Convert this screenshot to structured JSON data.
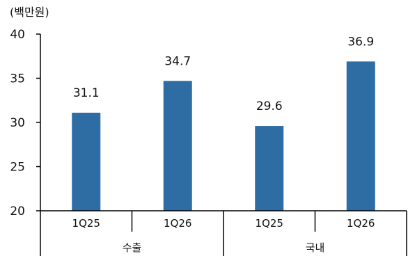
{
  "chart_data": {
    "type": "bar",
    "unit_label": "(백만원)",
    "groups": [
      "수출",
      "국내"
    ],
    "categories": [
      "1Q25",
      "1Q26",
      "1Q25",
      "1Q26"
    ],
    "category_groups": [
      "수출",
      "수출",
      "국내",
      "국내"
    ],
    "values": [
      31.1,
      34.7,
      29.6,
      36.9
    ],
    "data_labels": [
      "31.1",
      "34.7",
      "29.6",
      "36.9"
    ],
    "ylim": [
      20,
      40
    ],
    "yticks": [
      20,
      25,
      30,
      35,
      40
    ],
    "bar_color": "#2e6da4",
    "grid": false,
    "legend": "none"
  }
}
